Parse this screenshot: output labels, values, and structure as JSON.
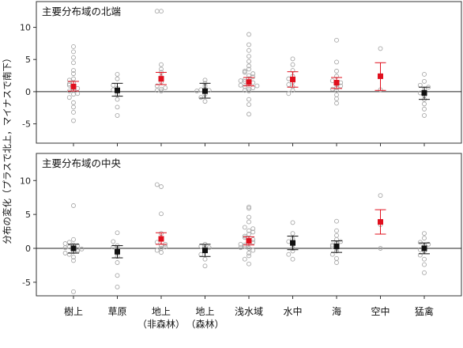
{
  "chart_data": {
    "type": "scatter",
    "ylabel": "分布の変化（プラスで北上，マイナスで南下）",
    "categories": [
      "樹上",
      "草原",
      "地上\n（非森林）",
      "地上\n（森林）",
      "浅水域",
      "水中",
      "海",
      "空中",
      "猛禽"
    ],
    "highlight_colors": {
      "significant": "#e0101e",
      "not_significant": "#111111",
      "raw": "#a8a8a8"
    },
    "panels": [
      {
        "title": "主要分布域の北端",
        "ylim": [
          -8,
          14
        ],
        "yticks": [
          -5,
          0,
          5,
          10
        ],
        "means": [
          0.8,
          0.2,
          2.0,
          0.1,
          1.5,
          1.9,
          1.4,
          2.4,
          -0.2
        ],
        "ci_low": [
          0.1,
          -0.7,
          1.1,
          -1.0,
          0.9,
          0.7,
          0.5,
          0.2,
          -1.2
        ],
        "ci_high": [
          1.6,
          1.3,
          3.0,
          1.3,
          2.2,
          3.1,
          2.2,
          4.5,
          0.7
        ],
        "significant": [
          true,
          false,
          true,
          false,
          true,
          true,
          true,
          true,
          false
        ],
        "points": [
          [
            0.3,
            0.6,
            1.0,
            1.4,
            2.0,
            2.8,
            -0.4,
            -0.9,
            -1.7,
            -2.4,
            -3.2,
            -4.5,
            3.3,
            4.5,
            5.3,
            6.2,
            7.0,
            0.1,
            0.5,
            1.2,
            1.8,
            -0.3
          ],
          [
            0.1,
            0.5,
            1.0,
            2.0,
            2.7,
            -0.5,
            -1.2,
            -2.4,
            -3.7,
            0.3
          ],
          [
            0.1,
            0.4,
            0.9,
            1.5,
            2.3,
            3.0,
            3.5,
            4.2,
            12.5,
            12.5,
            0.2,
            0.6
          ],
          [
            0.0,
            0.3,
            0.9,
            1.3,
            1.8,
            -0.4,
            -0.9,
            -1.5,
            0.2,
            0.1
          ],
          [
            0.1,
            0.4,
            0.8,
            1.2,
            1.6,
            2.0,
            2.5,
            3.0,
            3.5,
            4.0,
            4.7,
            5.5,
            6.4,
            7.3,
            8.9,
            -1.2,
            -2.0,
            -3.5,
            0.2,
            0.6,
            1.0,
            1.4,
            1.9,
            2.3,
            2.8,
            3.2,
            0.9,
            1.7
          ],
          [
            0.2,
            0.8,
            1.5,
            2.4,
            3.3,
            4.2,
            5.1,
            -0.3,
            1.1,
            2.0
          ],
          [
            0.2,
            0.6,
            1.1,
            1.7,
            2.4,
            3.2,
            4.6,
            8.0,
            -0.5,
            -1.1,
            -1.8,
            0.4,
            0.9,
            1.4
          ],
          [
            0.3,
            2.5,
            6.7
          ],
          [
            0.0,
            0.4,
            1.0,
            1.6,
            2.7,
            -0.6,
            -1.2,
            -1.9,
            -2.7,
            -3.7,
            -0.2,
            0.7
          ]
        ]
      },
      {
        "title": "主要分布域の中央",
        "ylim": [
          -7,
          14
        ],
        "yticks": [
          -5,
          0,
          5,
          10
        ],
        "means": [
          0.0,
          -0.5,
          1.4,
          -0.3,
          1.1,
          0.8,
          0.3,
          3.9,
          0.0
        ],
        "ci_low": [
          -0.7,
          -1.4,
          0.6,
          -1.2,
          0.5,
          -0.2,
          -0.6,
          2.1,
          -0.8
        ],
        "ci_high": [
          0.6,
          0.4,
          2.3,
          0.6,
          1.7,
          1.8,
          1.1,
          5.7,
          0.8
        ],
        "significant": [
          false,
          false,
          true,
          false,
          true,
          false,
          false,
          true,
          false
        ],
        "points": [
          [
            0.0,
            0.2,
            0.5,
            0.9,
            1.3,
            -0.2,
            -0.5,
            -0.9,
            -1.3,
            -1.8,
            6.3,
            -6.4,
            0.1,
            -0.1,
            0.4,
            -0.4,
            0.7,
            -0.7
          ],
          [
            0.0,
            0.4,
            1.0,
            2.3,
            -0.5,
            -1.2,
            -2.1,
            -4.0,
            -5.7,
            0.2
          ],
          [
            0.0,
            0.4,
            0.9,
            1.5,
            2.2,
            5.1,
            9.1,
            9.4,
            -0.3,
            -0.6,
            0.2,
            0.6
          ],
          [
            0.0,
            0.3,
            0.6,
            -0.4,
            -0.9,
            -1.6,
            -2.6,
            0.1
          ],
          [
            0.0,
            0.3,
            0.7,
            1.1,
            1.6,
            2.1,
            2.6,
            3.1,
            3.9,
            4.6,
            5.9,
            6.1,
            -0.3,
            -0.7,
            -1.1,
            -1.6,
            -2.3,
            0.5,
            0.9,
            1.3,
            1.8,
            2.4,
            2.9,
            0.1,
            0.6
          ],
          [
            0.0,
            0.6,
            1.4,
            2.2,
            3.8,
            -0.4,
            -0.9,
            -1.6,
            1.0
          ],
          [
            0.0,
            0.3,
            0.8,
            1.3,
            1.9,
            2.6,
            4.0,
            -0.4,
            -0.9,
            -1.5,
            -2.1,
            0.5,
            1.0
          ],
          [
            0.0,
            3.5,
            7.8
          ],
          [
            0.0,
            0.4,
            0.9,
            1.5,
            2.2,
            -0.4,
            -1.0,
            -1.6,
            -2.4,
            -3.6,
            0.6,
            -0.2
          ]
        ]
      }
    ]
  }
}
